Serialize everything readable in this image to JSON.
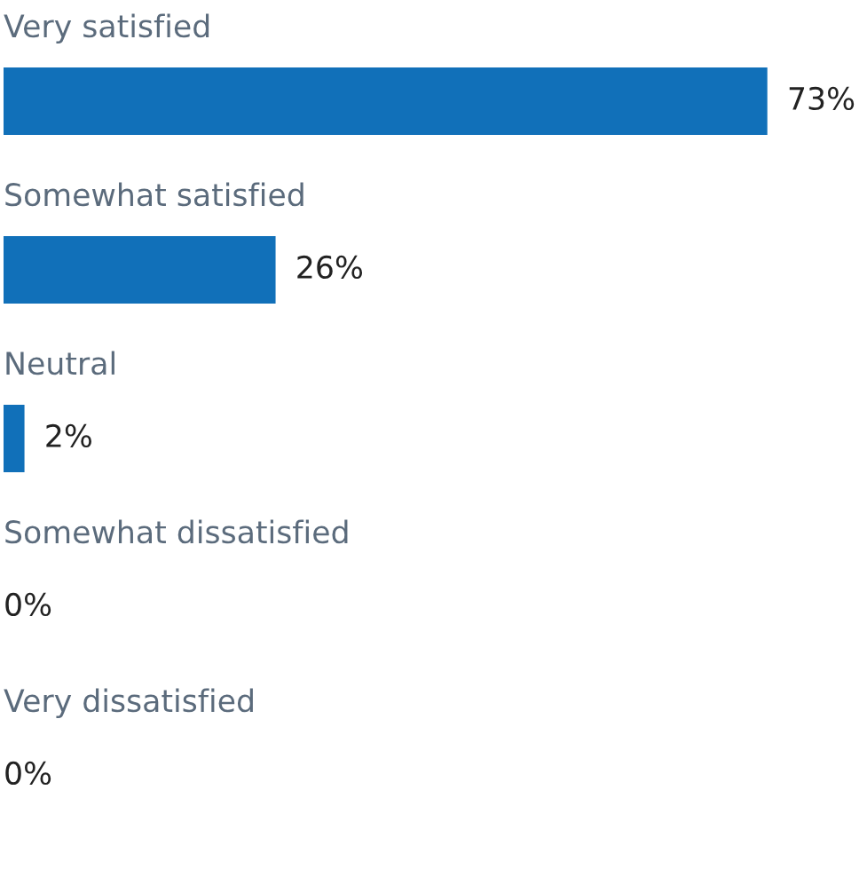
{
  "chart_data": {
    "type": "bar",
    "orientation": "horizontal",
    "categories": [
      "Very satisfied",
      "Somewhat satisfied",
      "Neutral",
      "Somewhat dissatisfied",
      "Very dissatisfied"
    ],
    "values": [
      73,
      26,
      2,
      0,
      0
    ],
    "value_labels": [
      "73%",
      "26%",
      "2%",
      "0%",
      "0%"
    ],
    "color": "#1170b9"
  }
}
